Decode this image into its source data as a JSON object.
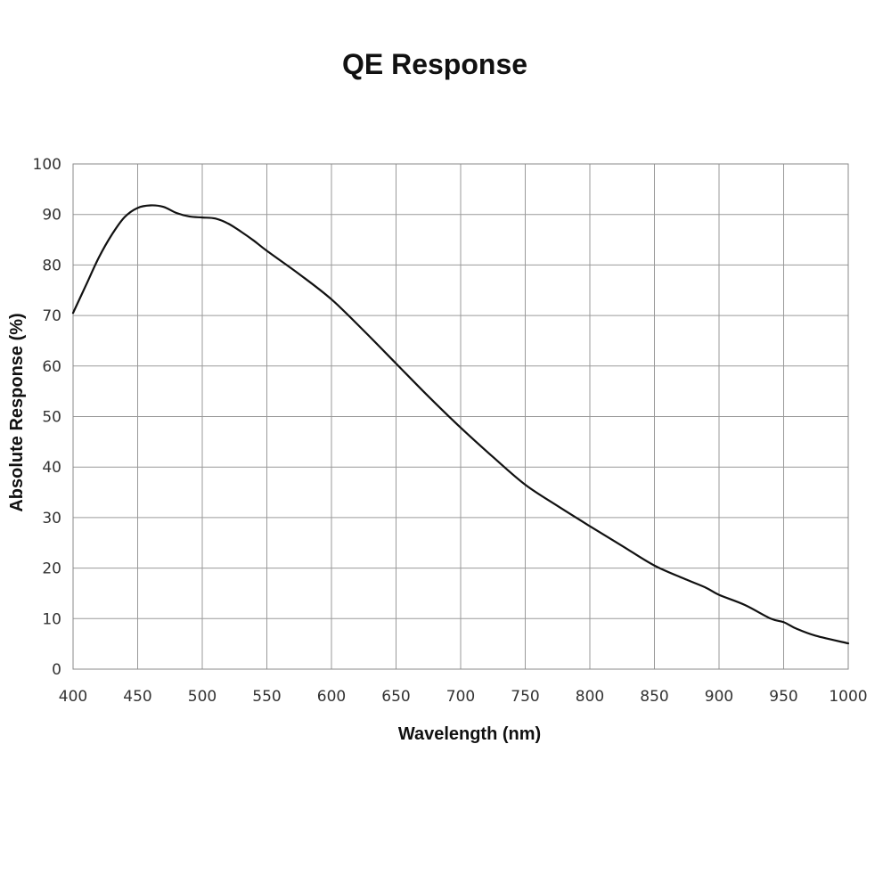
{
  "chart_data": {
    "type": "line",
    "title": "QE Response",
    "xlabel": "Wavelength (nm)",
    "ylabel": "Absolute Response (%)",
    "xlim": [
      400,
      1000
    ],
    "ylim": [
      0,
      100
    ],
    "x_ticks": [
      400,
      450,
      500,
      550,
      600,
      650,
      700,
      750,
      800,
      850,
      900,
      950,
      1000
    ],
    "y_ticks": [
      0,
      10,
      20,
      30,
      40,
      50,
      60,
      70,
      80,
      90,
      100
    ],
    "grid": true,
    "legend": "none",
    "line_color": "#111111",
    "series": [
      {
        "x": [
          400,
          410,
          420,
          430,
          440,
          450,
          460,
          470,
          480,
          490,
          500,
          510,
          520,
          530,
          540,
          550,
          575,
          600,
          625,
          650,
          675,
          700,
          725,
          750,
          775,
          800,
          825,
          850,
          875,
          890,
          900,
          920,
          940,
          950,
          960,
          975,
          1000
        ],
        "y": [
          70.5,
          76,
          81.5,
          86,
          89.5,
          91.3,
          91.8,
          91.5,
          90.3,
          89.6,
          89.4,
          89.2,
          88.2,
          86.6,
          84.8,
          82.8,
          78.2,
          73.2,
          67.0,
          60.5,
          54.0,
          47.8,
          42.0,
          36.5,
          32.3,
          28.3,
          24.4,
          20.5,
          17.7,
          16.1,
          14.7,
          12.7,
          10.0,
          9.3,
          8.0,
          6.6,
          5.1
        ]
      }
    ]
  }
}
